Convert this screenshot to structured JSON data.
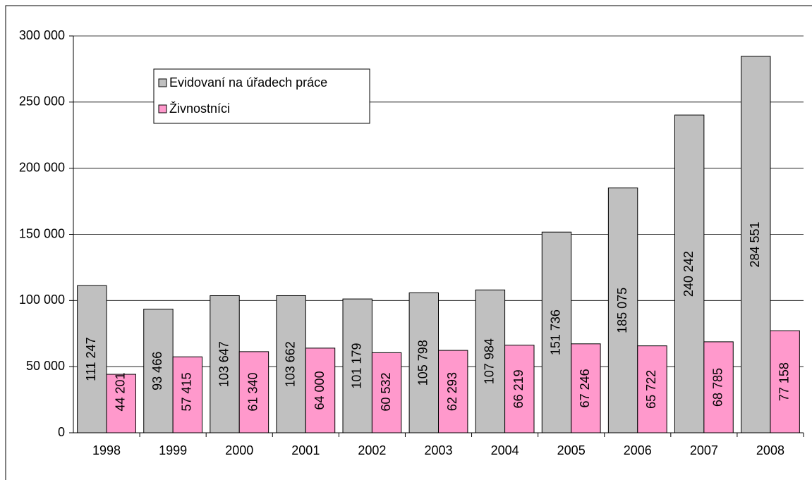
{
  "chart_data": {
    "type": "bar",
    "categories": [
      "1998",
      "1999",
      "2000",
      "2001",
      "2002",
      "2003",
      "2004",
      "2005",
      "2006",
      "2007",
      "2008"
    ],
    "series": [
      {
        "name": "Evidovaní na úřadech práce",
        "color": "#c0c0c0",
        "values": [
          111247,
          93466,
          103647,
          103662,
          101179,
          105798,
          107984,
          151736,
          185075,
          240242,
          284551
        ],
        "value_labels": [
          "111 247",
          "93 466",
          "103 647",
          "103 662",
          "101 179",
          "105 798",
          "107 984",
          "151 736",
          "185 075",
          "240 242",
          "284 551"
        ]
      },
      {
        "name": "Živnostníci",
        "color": "#ff99cc",
        "values": [
          44201,
          57415,
          61340,
          64000,
          60532,
          62293,
          66219,
          67246,
          65722,
          68785,
          77158
        ],
        "value_labels": [
          "44 201",
          "57 415",
          "61 340",
          "64 000",
          "60 532",
          "62 293",
          "66 219",
          "67 246",
          "65 722",
          "68 785",
          "77 158"
        ]
      }
    ],
    "ylim": [
      0,
      300000
    ],
    "yticks": [
      0,
      {
        "value": 50000,
        "label": "50 000"
      },
      {
        "value": 100000,
        "label": "100 000"
      },
      {
        "value": 150000,
        "label": "150 000"
      },
      {
        "value": 200000,
        "label": "200 000"
      },
      {
        "value": 250000,
        "label": "250 000"
      },
      {
        "value": 300000,
        "label": "300 000"
      }
    ],
    "grid": true,
    "legend": "upper left"
  }
}
